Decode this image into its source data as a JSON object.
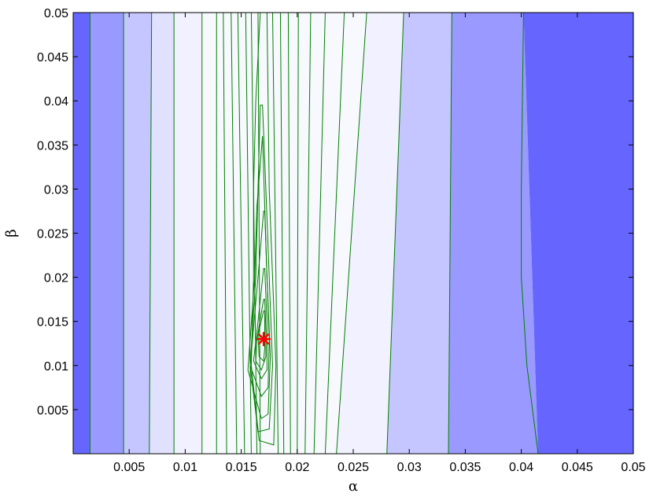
{
  "chart_data": {
    "type": "contour",
    "xlabel": "α",
    "ylabel": "β",
    "xlim": [
      0,
      0.05
    ],
    "ylim": [
      0,
      0.05
    ],
    "x_ticks": [
      "0.005",
      "0.01",
      "0.015",
      "0.02",
      "0.025",
      "0.03",
      "0.035",
      "0.04",
      "0.045",
      "0.05"
    ],
    "y_ticks": [
      "0.005",
      "0.01",
      "0.015",
      "0.02",
      "0.025",
      "0.03",
      "0.035",
      "0.04",
      "0.045",
      "0.05"
    ],
    "fill_bands": [
      {
        "alpha_bottom": [
          0,
          0.0015
        ],
        "alpha_top": [
          0,
          0.0015
        ],
        "color": "#6666ff"
      },
      {
        "alpha_bottom": [
          0.0015,
          0.0045
        ],
        "alpha_top": [
          0.0015,
          0.0045
        ],
        "color": "#9999ff"
      },
      {
        "alpha_bottom": [
          0.0045,
          0.0068
        ],
        "alpha_top": [
          0.0045,
          0.007
        ],
        "color": "#c5c5ff"
      },
      {
        "alpha_bottom": [
          0.0068,
          0.009
        ],
        "alpha_top": [
          0.007,
          0.009
        ],
        "color": "#e0e0ff"
      },
      {
        "alpha_bottom": [
          0.009,
          0.028
        ],
        "alpha_top": [
          0.009,
          0.0295
        ],
        "color": "#f1f1ff"
      },
      {
        "alpha_bottom": [
          0.028,
          0.0335
        ],
        "alpha_top": [
          0.0295,
          0.0338
        ],
        "color": "#c5c5ff"
      },
      {
        "alpha_bottom": [
          0.0335,
          0.0415
        ],
        "alpha_top": [
          0.0338,
          0.0402
        ],
        "color": "#9999ff"
      },
      {
        "alpha_bottom": [
          0.0415,
          0.05
        ],
        "alpha_top": [
          0.0402,
          0.05
        ],
        "color": "#6666ff"
      }
    ],
    "inner_region": {
      "alpha_bottom": [
        0.0115,
        0.0235
      ],
      "alpha_top": [
        0.0115,
        0.0262
      ],
      "color": "#f8f8ff"
    },
    "contour_lines": {
      "color": "#008000",
      "outer_verticals": [
        {
          "alpha_bottom": 0.0015,
          "alpha_top": 0.0015
        },
        {
          "alpha_bottom": 0.0045,
          "alpha_top": 0.0045
        },
        {
          "alpha_bottom": 0.0068,
          "alpha_top": 0.007
        },
        {
          "alpha_bottom": 0.009,
          "alpha_top": 0.009
        },
        {
          "alpha_bottom": 0.0115,
          "alpha_top": 0.0115
        },
        {
          "alpha_bottom": 0.0235,
          "alpha_top": 0.0262
        },
        {
          "alpha_bottom": 0.028,
          "alpha_top": 0.0295
        },
        {
          "alpha_bottom": 0.0335,
          "alpha_top": 0.0338
        }
      ],
      "level_curve": [
        [
          0.0415,
          0
        ],
        [
          0.0405,
          0.01
        ],
        [
          0.04,
          0.02
        ],
        [
          0.04,
          0.03
        ],
        [
          0.0401,
          0.04
        ],
        [
          0.0402,
          0.05
        ]
      ],
      "inner_lines": [
        {
          "left_bottom": 0.0128,
          "left_top": 0.0128,
          "right_bottom": 0.0225,
          "right_top": 0.0242
        },
        {
          "left_bottom": 0.0137,
          "left_top": 0.0134,
          "right_bottom": 0.0215,
          "right_top": 0.0225
        },
        {
          "left_bottom": 0.0146,
          "left_top": 0.0141,
          "right_bottom": 0.0207,
          "right_top": 0.0212
        },
        {
          "left_bottom": 0.0153,
          "left_top": 0.0147,
          "right_bottom": 0.02,
          "right_top": 0.0201
        },
        {
          "left_bottom": 0.0159,
          "left_top": 0.0154,
          "right_bottom": 0.0194,
          "right_top": 0.0192
        },
        {
          "left_bottom": 0.0164,
          "left_top": 0.0159,
          "right_bottom": 0.0188,
          "right_top": 0.0185
        },
        {
          "left_bottom": 0.0167,
          "left_top": 0.0165,
          "right_bottom": 0.0183,
          "right_top": 0.0178
        }
      ],
      "closed_loops": [
        [
          [
            0.0167,
            0.05
          ],
          [
            0.0163,
            0.04
          ],
          [
            0.0161,
            0.03
          ],
          [
            0.0161,
            0.02
          ],
          [
            0.0159,
            0.01
          ],
          [
            0.0166,
            0.0015
          ],
          [
            0.0179,
            0.001
          ],
          [
            0.0181,
            0.01
          ],
          [
            0.0178,
            0.02
          ],
          [
            0.0175,
            0.03
          ],
          [
            0.0174,
            0.04
          ],
          [
            0.0173,
            0.05
          ]
        ],
        [
          [
            0.0167,
            0.0395
          ],
          [
            0.0165,
            0.03
          ],
          [
            0.0163,
            0.02
          ],
          [
            0.0158,
            0.01
          ],
          [
            0.0165,
            0.0025
          ],
          [
            0.0175,
            0.0028
          ],
          [
            0.0178,
            0.01
          ],
          [
            0.0175,
            0.02
          ],
          [
            0.0172,
            0.03
          ],
          [
            0.0169,
            0.0395
          ]
        ],
        [
          [
            0.0169,
            0.036
          ],
          [
            0.0164,
            0.028
          ],
          [
            0.0162,
            0.02
          ],
          [
            0.0156,
            0.0095
          ],
          [
            0.0168,
            0.004
          ],
          [
            0.0174,
            0.0045
          ],
          [
            0.0176,
            0.011
          ],
          [
            0.0173,
            0.02
          ],
          [
            0.0171,
            0.028
          ],
          [
            0.0169,
            0.036
          ]
        ],
        [
          [
            0.017,
            0.0275
          ],
          [
            0.0165,
            0.02
          ],
          [
            0.0158,
            0.01
          ],
          [
            0.0168,
            0.0065
          ],
          [
            0.0174,
            0.0075
          ],
          [
            0.0175,
            0.013
          ],
          [
            0.0173,
            0.02
          ],
          [
            0.0171,
            0.0275
          ]
        ],
        [
          [
            0.017,
            0.021
          ],
          [
            0.0165,
            0.015
          ],
          [
            0.0161,
            0.0105
          ],
          [
            0.0168,
            0.0085
          ],
          [
            0.0173,
            0.0095
          ],
          [
            0.0173,
            0.015
          ],
          [
            0.0171,
            0.021
          ]
        ],
        [
          [
            0.017,
            0.0175
          ],
          [
            0.0164,
            0.013
          ],
          [
            0.0163,
            0.0105
          ],
          [
            0.0168,
            0.0095
          ],
          [
            0.0172,
            0.011
          ],
          [
            0.0172,
            0.014
          ],
          [
            0.0171,
            0.0175
          ]
        ],
        [
          [
            0.017,
            0.0162
          ],
          [
            0.0165,
            0.0135
          ],
          [
            0.0166,
            0.011
          ],
          [
            0.017,
            0.0105
          ],
          [
            0.0171,
            0.012
          ],
          [
            0.0171,
            0.0162
          ]
        ]
      ]
    },
    "optimum_marker": {
      "alpha": 0.017,
      "beta": 0.013,
      "color": "#ff0000"
    }
  }
}
